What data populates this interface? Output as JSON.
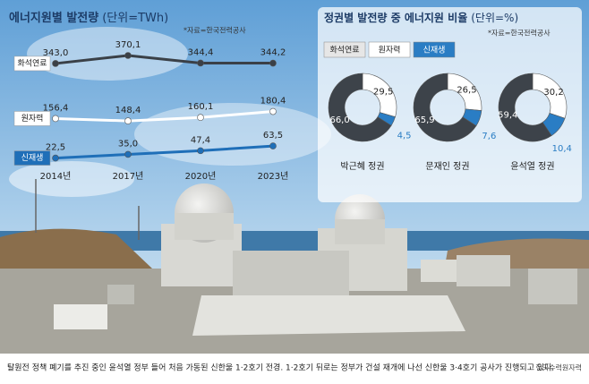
{
  "chart_data": [
    {
      "type": "line",
      "title": "에너지원별 발전량",
      "unit": "(단위=TWh)",
      "source": "*자료=한국전력공사",
      "categories": [
        "2014년",
        "2017년",
        "2020년",
        "2023년"
      ],
      "series": [
        {
          "name": "화석연료",
          "color": "#3a4047",
          "values": [
            343.0,
            370.1,
            344.4,
            344.2
          ],
          "value_labels": [
            "343,0",
            "370,1",
            "344,4",
            "344,2"
          ]
        },
        {
          "name": "원자력",
          "color": "#ffffff",
          "values": [
            156.4,
            148.4,
            160.1,
            180.4
          ],
          "value_labels": [
            "156,4",
            "148,4",
            "160,1",
            "180,4"
          ]
        },
        {
          "name": "신재생",
          "color": "#1f6fb8",
          "values": [
            22.5,
            35.0,
            47.4,
            63.5
          ],
          "value_labels": [
            "22,5",
            "35,0",
            "47,4",
            "63,5"
          ]
        }
      ]
    },
    {
      "type": "donut",
      "title": "정권별 발전량 중 에너지원 비율",
      "unit": "(단위=%)",
      "source": "*자료=한국전력공사",
      "categories": [
        "화석연료",
        "원자력",
        "신재생"
      ],
      "colors": [
        "#3d434a",
        "#ffffff",
        "#2a7dc4"
      ],
      "series": [
        {
          "name": "박근혜 정권",
          "values": [
            66.0,
            29.5,
            4.5
          ],
          "value_labels": [
            "66,0",
            "29,5",
            "4,5"
          ]
        },
        {
          "name": "문재인 정권",
          "values": [
            65.9,
            26.5,
            7.6
          ],
          "value_labels": [
            "65,9",
            "26,5",
            "7,6"
          ]
        },
        {
          "name": "윤석열 정권",
          "values": [
            59.4,
            30.2,
            10.4
          ],
          "value_labels": [
            "59,4",
            "30,2",
            "10,4"
          ]
        }
      ]
    }
  ],
  "caption": {
    "text": "탈원전 정책 폐기를 추진 중인 윤석열 정부 들어 처음 가동된 신한울 1·2호기 전경. 1·2호기 뒤로는 정부가 건설 재개에 나선 신한울 3·4호기 공사가 진행되고 있다.",
    "credit": "한국수력원자력"
  }
}
